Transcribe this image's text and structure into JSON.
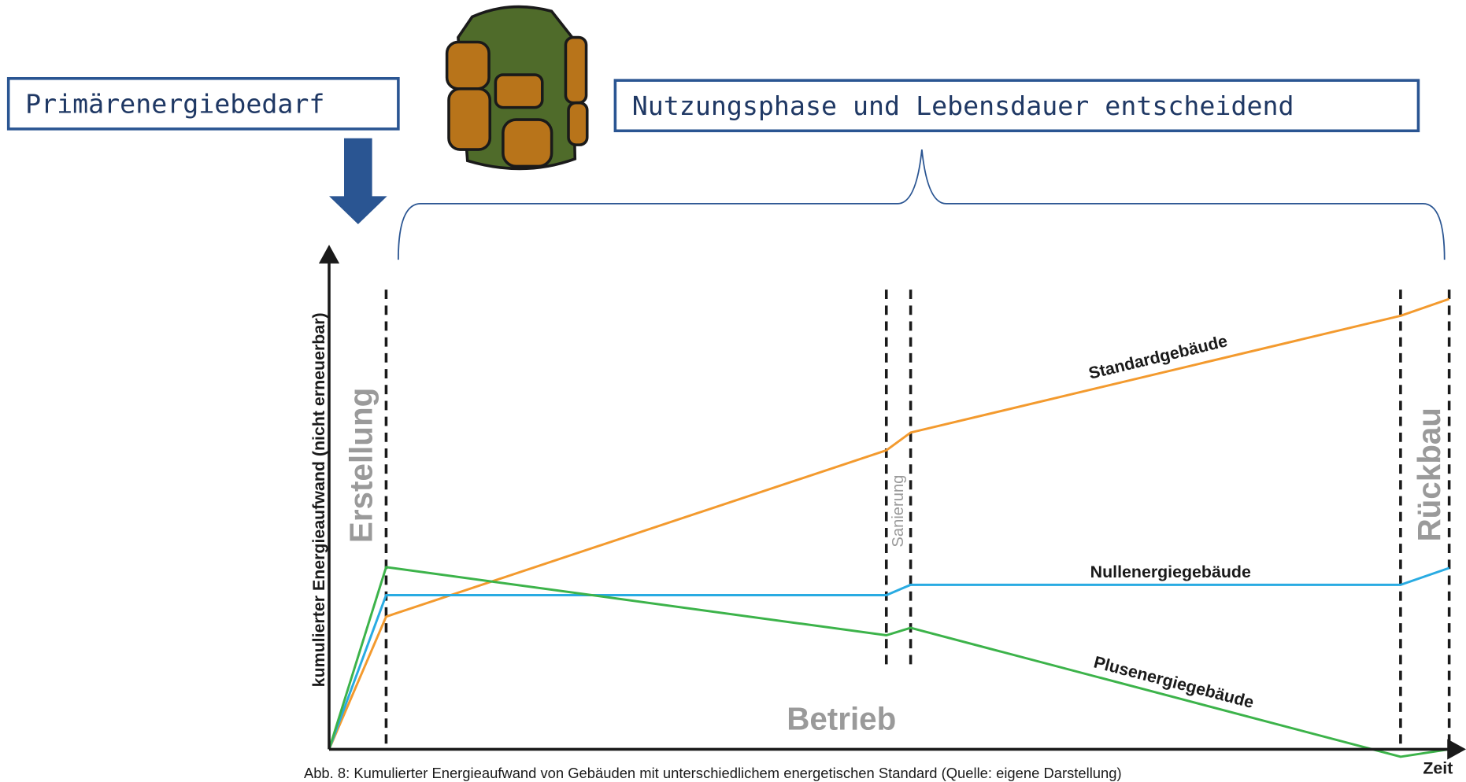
{
  "left_box": {
    "label": "Primärenergiebedarf"
  },
  "right_box": {
    "label": "Nutzungsphase und Lebensdauer entscheidend"
  },
  "diagram": {
    "y_axis_label": "kumulierter Energieaufwand (nicht erneuerbar)",
    "x_axis_label": "Zeit",
    "phases": {
      "construction": "Erstellung",
      "renovation": "Sanierung",
      "demolition": "Rückbau",
      "operation": "Betrieb"
    },
    "lines": {
      "standard": "Standardgebäude",
      "zero": "Nullenergiegebäude",
      "plus": "Plusenergiegebäude"
    },
    "caption": "Abb. 8: Kumulierter Energieaufwand von Gebäuden mit unterschiedlichem energetischen Standard (Quelle: eigene Darstellung)"
  }
}
